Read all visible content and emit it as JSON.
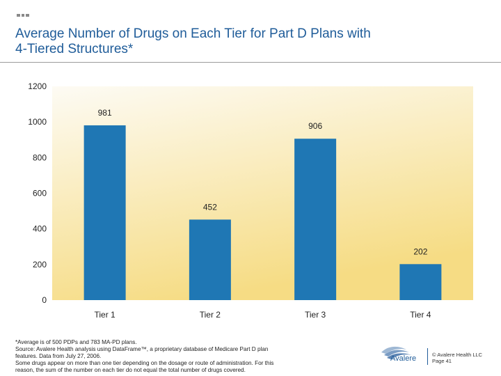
{
  "header": {
    "title_line1": "Average Number of Drugs on Each Tier for Part D Plans with",
    "title_line2": "4-Tiered Structures*"
  },
  "chart_data": {
    "type": "bar",
    "categories": [
      "Tier 1",
      "Tier 2",
      "Tier 3",
      "Tier 4"
    ],
    "values": [
      981,
      452,
      906,
      202
    ],
    "data_labels": [
      "981",
      "452",
      "906",
      "202"
    ],
    "ylim": [
      0,
      1200
    ],
    "yticks": [
      0,
      200,
      400,
      600,
      800,
      1000,
      1200
    ],
    "title": "",
    "xlabel": "",
    "ylabel": "",
    "grid": false,
    "colors": {
      "bar": "#1f77b4",
      "plot_bg_top": "#fdfbf4",
      "plot_bg_bottom": "#f6dc84"
    }
  },
  "footnote": {
    "line1": "*Average is of 500 PDPs and 783 MA-PD plans.",
    "line2": "Source: Avalere Health analysis using DataFrame™, a proprietary database of Medicare Part D plan",
    "line3": "features. Data from July 27, 2006.",
    "line4": "Some drugs appear on more than one tier depending on the dosage or route of administration. For this",
    "line5": "reason, the sum of the number on each tier do not equal the total number of drugs covered."
  },
  "logo": {
    "name": "Avalere",
    "icon": "avalere-wave-logo"
  },
  "footer": {
    "copyright": "© Avalere Health LLC",
    "page": "Page 41"
  }
}
